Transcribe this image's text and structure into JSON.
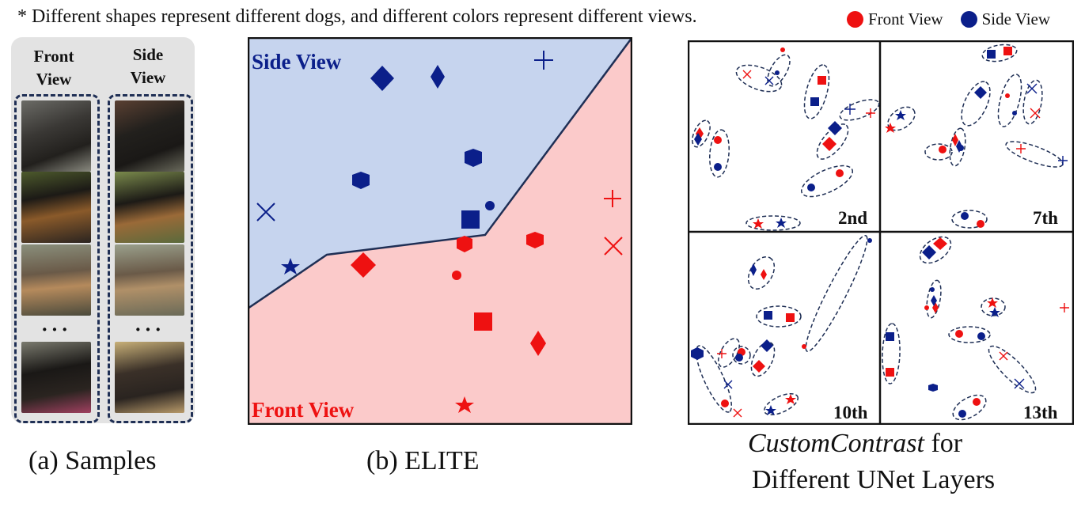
{
  "note": "* Different shapes represent different dogs, and different colors represent different views.",
  "legend": [
    {
      "label": "Front View",
      "color": "#ee1111"
    },
    {
      "label": "Side View",
      "color": "#0b1f8a"
    }
  ],
  "samples": {
    "front_header": "Front View",
    "side_header": "Side View",
    "ellipsis": "···",
    "caption": "(a) Samples"
  },
  "elite": {
    "side_region_label": "Side View",
    "front_region_label": "Front View",
    "caption": "(b) ELITE"
  },
  "customcontrast": {
    "caption_method": "CustomContrast",
    "caption_rest_line1": " for",
    "caption_line2": "Different UNet Layers",
    "layers": [
      "2nd",
      "7th",
      "10th",
      "13th"
    ]
  },
  "colors": {
    "front": "#ee1111",
    "side": "#0b1f8a",
    "side_region": "#c6d4ee",
    "front_region": "#fbcaca",
    "outline": "#1f2f55"
  }
}
